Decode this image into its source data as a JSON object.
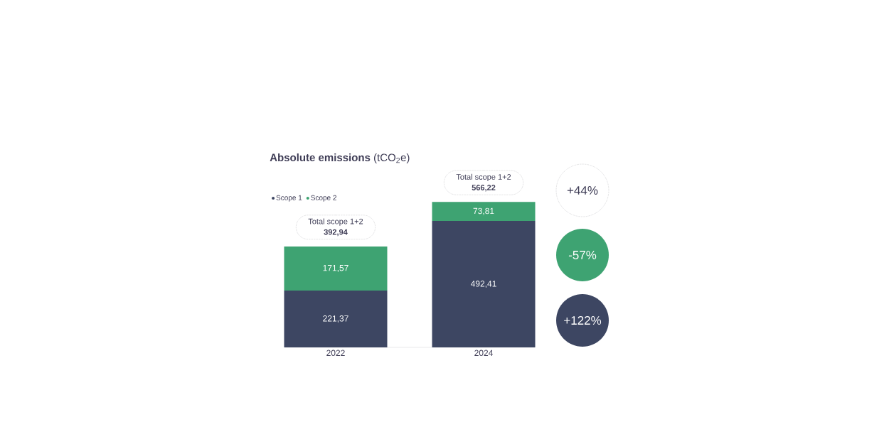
{
  "chart_data": {
    "type": "bar",
    "title": "**Absolute emissions** (tCO$_{2}$e)",
    "categories": [
      "2022",
      "2024"
    ],
    "stacked": true,
    "legend": "top left",
    "series": [
      {
        "name": "Scope 1",
        "color": "#3d4662",
        "values": [
          221.37,
          492.41
        ],
        "value_labels": [
          "221,37",
          "492,41"
        ]
      },
      {
        "name": "Scope 2",
        "color": "#3ea372",
        "values": [
          171.57,
          73.81
        ],
        "value_labels": [
          "171,57",
          "73,81"
        ]
      }
    ],
    "totals": [
      "392,94",
      "566,22"
    ],
    "annotations": [
      {
        "text": "Total scope 1+2",
        "x": "2022",
        "y": 392.94
      },
      {
        "text": "Total scope 1+2",
        "x": "2024",
        "y": 566.22
      },
      "+44%",
      "-57%",
      "+122%"
    ]
  }
}
